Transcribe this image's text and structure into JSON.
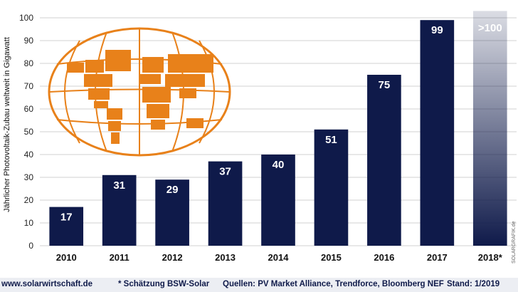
{
  "chart_data": {
    "type": "bar",
    "categories": [
      "2010",
      "2011",
      "2012",
      "2013",
      "2014",
      "2015",
      "2016",
      "2017",
      "2018*"
    ],
    "values": [
      17,
      31,
      29,
      37,
      40,
      51,
      75,
      99,
      105
    ],
    "value_labels": [
      "17",
      "31",
      "29",
      "37",
      "40",
      "51",
      "75",
      "99",
      ">100"
    ],
    "ylabel": "Jährlicher Photovoltaik-Zubau weltweit in Gigawatt",
    "yticks": [
      0,
      10,
      20,
      30,
      40,
      50,
      60,
      70,
      80,
      90,
      100
    ],
    "ylim": [
      0,
      100
    ],
    "grid": true,
    "bar_color": "#0f1a4a",
    "globe_color": "#e8811a"
  },
  "footer": {
    "website": "www.solarwirtschaft.de",
    "note": "* Schätzung BSW-Solar",
    "sources": "Quellen: PV Market Alliance, Trendforce, Bloomberg NEF",
    "date": "Stand: 1/2019"
  },
  "watermark": "SOLARGRAFIK.de"
}
